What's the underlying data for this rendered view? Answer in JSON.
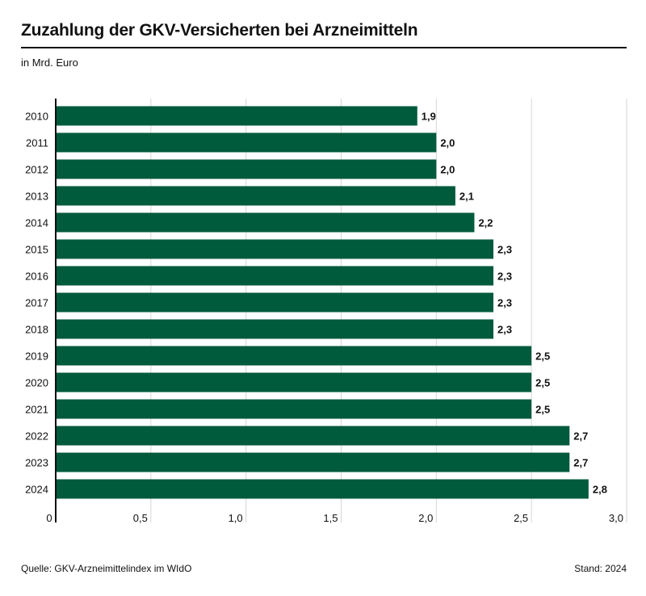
{
  "header": {
    "title": "Zuzahlung der GKV-Versicherten bei Arzneimitteln",
    "subtitle": "in Mrd. Euro"
  },
  "footer": {
    "source": "Quelle: GKV-Arzneimittelindex im WIdO",
    "stand": "Stand: 2024"
  },
  "colors": {
    "bar": "#005a3c",
    "grid": "#d6d6d6",
    "axis": "#111111",
    "text": "#111111"
  },
  "chart_data": {
    "type": "bar",
    "orientation": "horizontal",
    "title": "Zuzahlung der GKV-Versicherten bei Arzneimitteln",
    "xlabel": "in Mrd. Euro",
    "ylabel": "",
    "categories": [
      "2010",
      "2011",
      "2012",
      "2013",
      "2014",
      "2015",
      "2016",
      "2017",
      "2018",
      "2019",
      "2020",
      "2021",
      "2022",
      "2023",
      "2024"
    ],
    "values": [
      1.9,
      2.0,
      2.0,
      2.1,
      2.2,
      2.3,
      2.3,
      2.3,
      2.3,
      2.5,
      2.5,
      2.5,
      2.7,
      2.7,
      2.8
    ],
    "value_labels": [
      "1,9",
      "2,0",
      "2,0",
      "2,1",
      "2,2",
      "2,3",
      "2,3",
      "2,3",
      "2,3",
      "2,5",
      "2,5",
      "2,5",
      "2,7",
      "2,7",
      "2,8"
    ],
    "xlim": [
      0,
      3.0
    ],
    "x_ticks": [
      0,
      0.5,
      1.0,
      1.5,
      2.0,
      2.5,
      3.0
    ],
    "x_tick_labels": [
      "0",
      "0,5",
      "1,0",
      "1,5",
      "2,0",
      "2,5",
      "3,0"
    ],
    "grid": true
  }
}
